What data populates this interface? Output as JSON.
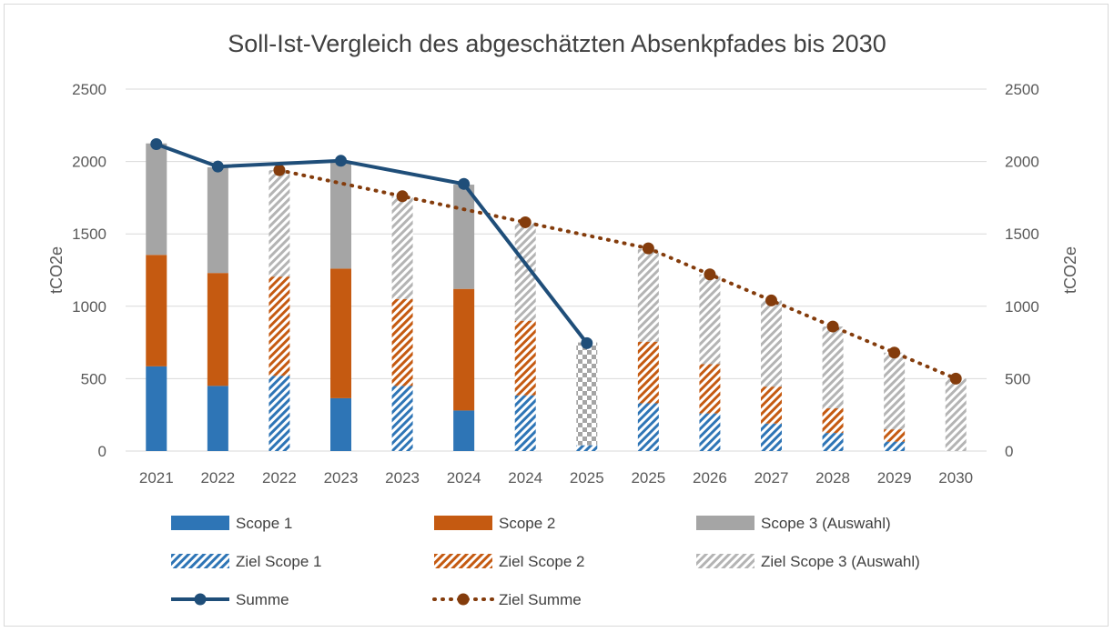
{
  "chart_data": {
    "type": "bar",
    "stacked": true,
    "title": "Soll-Ist-Vergleich des abgeschätzten Absenkpfades bis 2030",
    "ylabel_left": "tCO2e",
    "ylabel_right": "tCO2e",
    "ylim": [
      0,
      2500
    ],
    "yticks": [
      "0",
      "500",
      "1000",
      "1500",
      "2000",
      "2500"
    ],
    "grid": true,
    "legend_position": "bottom",
    "categories": [
      "2021",
      "2022",
      "2022",
      "2023",
      "2023",
      "2024",
      "2024",
      "2025",
      "2025",
      "2026",
      "2027",
      "2028",
      "2029",
      "2030"
    ],
    "bars": [
      {
        "scope1": 585,
        "scope2": 770,
        "scope3": 770,
        "kind": "ist"
      },
      {
        "scope1": 450,
        "scope2": 780,
        "scope3": 730,
        "kind": "ist"
      },
      {
        "scope1": 520,
        "scope2": 685,
        "scope3": 735,
        "kind": "ziel"
      },
      {
        "scope1": 365,
        "scope2": 895,
        "scope3": 740,
        "kind": "ist"
      },
      {
        "scope1": 450,
        "scope2": 600,
        "scope3": 710,
        "kind": "ziel"
      },
      {
        "scope1": 280,
        "scope2": 840,
        "scope3": 720,
        "kind": "ist"
      },
      {
        "scope1": 385,
        "scope2": 515,
        "scope3": 680,
        "kind": "ziel"
      },
      {
        "scope1": 40,
        "scope2": 0,
        "scope3": 710,
        "kind": "checker"
      },
      {
        "scope1": 330,
        "scope2": 425,
        "scope3": 640,
        "kind": "ziel"
      },
      {
        "scope1": 260,
        "scope2": 340,
        "scope3": 620,
        "kind": "ziel"
      },
      {
        "scope1": 190,
        "scope2": 255,
        "scope3": 595,
        "kind": "ziel"
      },
      {
        "scope1": 125,
        "scope2": 170,
        "scope3": 565,
        "kind": "ziel"
      },
      {
        "scope1": 65,
        "scope2": 85,
        "scope3": 530,
        "kind": "ziel"
      },
      {
        "scope1": 0,
        "scope2": 0,
        "scope3": 500,
        "kind": "ziel"
      }
    ],
    "lines": {
      "summe": [
        2120,
        1965,
        null,
        2005,
        null,
        1845,
        null,
        745,
        null,
        null,
        null,
        null,
        null,
        null
      ],
      "ziel_summe": [
        null,
        null,
        1940,
        null,
        1760,
        null,
        1580,
        null,
        1400,
        1220,
        1040,
        860,
        680,
        500
      ]
    },
    "legend": [
      {
        "key": "scope1",
        "label": "Scope 1"
      },
      {
        "key": "scope2",
        "label": "Scope 2"
      },
      {
        "key": "scope3",
        "label": "Scope 3 (Auswahl)"
      },
      {
        "key": "ziel_scope1",
        "label": "Ziel Scope 1"
      },
      {
        "key": "ziel_scope2",
        "label": "Ziel Scope 2"
      },
      {
        "key": "ziel_scope3",
        "label": " Ziel Scope 3 (Auswahl)"
      },
      {
        "key": "summe",
        "label": "Summe"
      },
      {
        "key": "ziel_summe",
        "label": "Ziel Summe"
      }
    ],
    "colors": {
      "scope1": "#2e75b6",
      "scope2": "#c55a11",
      "scope3": "#a5a5a5",
      "summe": "#1f4e79",
      "ziel_summe": "#843c0c",
      "grid": "#d9d9d9"
    }
  }
}
